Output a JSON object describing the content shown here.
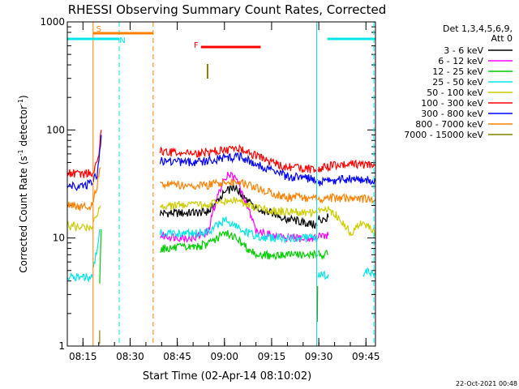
{
  "chart_data": {
    "type": "line",
    "title": "RHESSI Observing Summary Count Rates, Corrected",
    "xlabel": "Start Time (02-Apr-14 08:10:02)",
    "ylabel_main": "Corrected Count Rate (s",
    "ylabel_sup1": "-1",
    "ylabel_mid": " detector",
    "ylabel_sup2": "-1",
    "ylabel_end": ")",
    "x_range_minutes": [
      0,
      98
    ],
    "y_range": [
      1,
      1000
    ],
    "y_scale": "log",
    "x_ticks": [
      {
        "label": "08:15",
        "minutes": 4.97
      },
      {
        "label": "08:30",
        "minutes": 19.97
      },
      {
        "label": "08:45",
        "minutes": 34.97
      },
      {
        "label": "09:00",
        "minutes": 49.97
      },
      {
        "label": "09:15",
        "minutes": 64.97
      },
      {
        "label": "09:30",
        "minutes": 79.97
      },
      {
        "label": "09:45",
        "minutes": 94.97
      }
    ],
    "y_ticks": [
      {
        "label": "1",
        "value": 1
      },
      {
        "label": "10",
        "value": 10
      },
      {
        "label": "100",
        "value": 100
      },
      {
        "label": "1000",
        "value": 1000
      }
    ],
    "legend": {
      "position": "right",
      "header1": "Det 1,3,4,5,6,9,",
      "header2": "Att 0",
      "entries": [
        {
          "label": "3 - 6 keV",
          "color": "#000000"
        },
        {
          "label": "6 - 12 keV",
          "color": "#ff00ff"
        },
        {
          "label": "12 - 25 keV",
          "color": "#00cc00"
        },
        {
          "label": "25 - 50 keV",
          "color": "#00e5e5"
        },
        {
          "label": "50 - 100 keV",
          "color": "#cccc00"
        },
        {
          "label": "100 - 300 keV",
          "color": "#ff0000"
        },
        {
          "label": "300 - 800 keV",
          "color": "#0000ff"
        },
        {
          "label": "800 - 7000 keV",
          "color": "#ff8000"
        },
        {
          "label": "7000 - 15000 keV",
          "color": "#808000"
        }
      ]
    },
    "flags": [
      {
        "label": "S",
        "color": "#ff8000",
        "x_start": 8.2,
        "x_end": 27.3
      },
      {
        "label": "N",
        "color": "#00e5e5",
        "x_start": 0,
        "x_end": 16.5
      },
      {
        "label": "N",
        "color": "#00e5e5",
        "x_start": 82.7,
        "x_end": 98
      },
      {
        "label": "F",
        "color": "#ff0000",
        "x_start": 42.5,
        "x_end": 61.5
      }
    ],
    "vertical_markers": [
      {
        "x": 8.2,
        "color": "#ff8000",
        "style": "solid"
      },
      {
        "x": 16.5,
        "color": "#00e5e5",
        "style": "dashed"
      },
      {
        "x": 27.3,
        "color": "#ff8000",
        "style": "dashed"
      },
      {
        "x": 79.3,
        "color": "#00e5e5",
        "style": "solid"
      },
      {
        "x": 97.5,
        "color": "#00e5e5",
        "style": "dashed"
      }
    ],
    "series": [
      {
        "name": "3 - 6 keV",
        "color": "#000000",
        "segments": [
          [
            [
              29.5,
              17
            ],
            [
              40,
              17
            ],
            [
              45,
              17.5
            ],
            [
              50,
              26
            ],
            [
              53,
              30
            ],
            [
              56,
              24
            ],
            [
              60,
              18
            ],
            [
              65,
              17
            ],
            [
              70,
              15
            ],
            [
              75,
              14
            ],
            [
              79.5,
              13
            ]
          ],
          [
            [
              79.8,
              15
            ],
            [
              83,
              15.5
            ]
          ]
        ]
      },
      {
        "name": "6 - 12 keV",
        "color": "#ff00ff",
        "segments": [
          [
            [
              29.5,
              10.5
            ],
            [
              40,
              10
            ],
            [
              45,
              11.5
            ],
            [
              48,
              25
            ],
            [
              51,
              40
            ],
            [
              54,
              33
            ],
            [
              57,
              20
            ],
            [
              60,
              12
            ],
            [
              65,
              10.5
            ],
            [
              70,
              10
            ],
            [
              75,
              10
            ],
            [
              79.5,
              10
            ]
          ],
          [
            [
              79.8,
              10.5
            ],
            [
              83,
              10.5
            ]
          ]
        ]
      },
      {
        "name": "12 - 25 keV",
        "color": "#00cc00",
        "segments": [
          [
            [
              10.3,
              3.5
            ],
            [
              10.8,
              12
            ]
          ],
          [
            [
              29.5,
              8
            ],
            [
              40,
              8.2
            ],
            [
              45,
              8.8
            ],
            [
              50,
              11
            ],
            [
              53,
              10.5
            ],
            [
              56,
              8.5
            ],
            [
              60,
              7.2
            ],
            [
              65,
              6.8
            ],
            [
              70,
              7
            ],
            [
              75,
              7
            ],
            [
              79.5,
              7
            ]
          ],
          [
            [
              79.8,
              7
            ],
            [
              83,
              7
            ]
          ]
        ]
      },
      {
        "name": "25 - 50 keV",
        "color": "#00e5e5",
        "segments": [
          [
            [
              0,
              4.3
            ],
            [
              5,
              4.3
            ],
            [
              8,
              4.3
            ]
          ],
          [
            [
              8.3,
              5
            ],
            [
              9.5,
              8
            ],
            [
              10.5,
              12
            ]
          ],
          [
            [
              29.5,
              11
            ],
            [
              40,
              11
            ],
            [
              45,
              11.5
            ],
            [
              50,
              14.5
            ],
            [
              53,
              13
            ],
            [
              56,
              11.5
            ],
            [
              60,
              10.5
            ],
            [
              65,
              10
            ],
            [
              70,
              10
            ],
            [
              75,
              10
            ],
            [
              79.5,
              9.8
            ]
          ],
          [
            [
              79.8,
              4.7
            ],
            [
              81,
              4.4
            ],
            [
              83,
              4.6
            ]
          ],
          [
            [
              94,
              4.8
            ],
            [
              98,
              4.8
            ]
          ]
        ]
      },
      {
        "name": "50 - 100 keV",
        "color": "#cccc00",
        "segments": [
          [
            [
              0,
              13
            ],
            [
              4,
              12.5
            ],
            [
              8,
              12.8
            ]
          ],
          [
            [
              8.3,
              14
            ],
            [
              10.5,
              20
            ]
          ],
          [
            [
              29.5,
              20
            ],
            [
              40,
              20
            ],
            [
              45,
              20.5
            ],
            [
              50,
              22
            ],
            [
              55,
              22
            ],
            [
              60,
              19
            ],
            [
              65,
              18
            ],
            [
              70,
              17.5
            ],
            [
              75,
              17
            ],
            [
              79.5,
              17
            ]
          ],
          [
            [
              79.8,
              18
            ],
            [
              83,
              18
            ],
            [
              86,
              16
            ],
            [
              90,
              11
            ],
            [
              94,
              14
            ],
            [
              98,
              11
            ]
          ]
        ]
      },
      {
        "name": "100 - 300 keV",
        "color": "#ff0000",
        "segments": [
          [
            [
              0,
              40
            ],
            [
              4,
              39
            ],
            [
              8,
              40
            ]
          ],
          [
            [
              8.3,
              42
            ],
            [
              9.5,
              50
            ],
            [
              10.3,
              70
            ],
            [
              10.8,
              100
            ]
          ],
          [
            [
              29.5,
              63
            ],
            [
              35,
              61
            ],
            [
              40,
              60
            ],
            [
              45,
              63
            ],
            [
              50,
              65
            ],
            [
              55,
              66
            ],
            [
              60,
              58
            ],
            [
              65,
              50
            ],
            [
              70,
              45
            ],
            [
              75,
              44
            ],
            [
              79.5,
              43
            ]
          ],
          [
            [
              79.8,
              43
            ],
            [
              83,
              46
            ],
            [
              90,
              48
            ],
            [
              98,
              47
            ]
          ]
        ]
      },
      {
        "name": "300 - 800 keV",
        "color": "#0000ff",
        "segments": [
          [
            [
              0,
              31
            ],
            [
              4,
              30
            ],
            [
              8,
              32
            ]
          ],
          [
            [
              8.3,
              33
            ],
            [
              9.5,
              40
            ],
            [
              10.3,
              60
            ],
            [
              10.8,
              90
            ]
          ],
          [
            [
              29.5,
              52
            ],
            [
              35,
              51
            ],
            [
              40,
              50
            ],
            [
              45,
              52
            ],
            [
              50,
              55
            ],
            [
              55,
              56
            ],
            [
              60,
              48
            ],
            [
              65,
              42
            ],
            [
              70,
              37
            ],
            [
              75,
              36
            ],
            [
              79.5,
              35
            ]
          ],
          [
            [
              79.8,
              33
            ],
            [
              83,
              34
            ],
            [
              90,
              35
            ],
            [
              98,
              34
            ]
          ]
        ]
      },
      {
        "name": "800 - 7000 keV",
        "color": "#ff8000",
        "segments": [
          [
            [
              0,
              20
            ],
            [
              4,
              19.5
            ],
            [
              8,
              20
            ]
          ],
          [
            [
              8.3,
              22
            ],
            [
              9.5,
              30
            ],
            [
              10.5,
              45
            ]
          ],
          [
            [
              29.5,
              32
            ],
            [
              35,
              31
            ],
            [
              40,
              30
            ],
            [
              45,
              31
            ],
            [
              50,
              32
            ],
            [
              55,
              32
            ],
            [
              60,
              29
            ],
            [
              65,
              26
            ],
            [
              70,
              24
            ],
            [
              75,
              23.5
            ],
            [
              79.5,
              23
            ]
          ],
          [
            [
              79.8,
              23
            ],
            [
              83,
              23.5
            ],
            [
              90,
              23
            ],
            [
              98,
              23
            ]
          ]
        ]
      },
      {
        "name": "7000 - 15000 keV",
        "color": "#808000",
        "segments": [
          [
            [
              10.3,
              1
            ],
            [
              10.3,
              1.4
            ]
          ],
          [
            [
              79.5,
              1.6
            ],
            [
              79.6,
              3.6
            ]
          ]
        ]
      }
    ]
  },
  "timestamp": "22-Oct-2021 00:48"
}
